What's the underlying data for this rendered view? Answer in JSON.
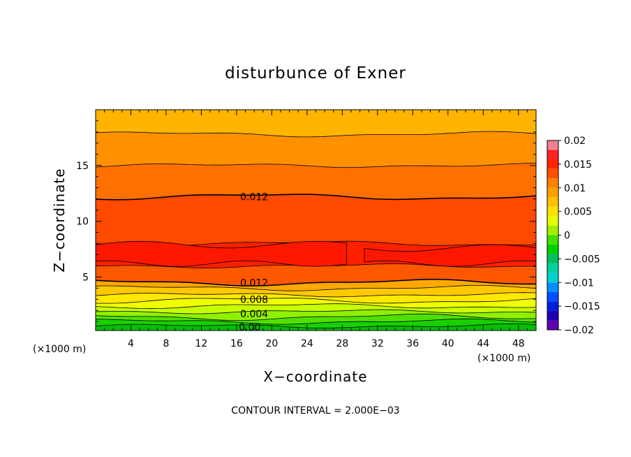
{
  "chart_data": {
    "type": "contour",
    "title": "disturbunce of Exner",
    "xlabel": "X−coordinate",
    "ylabel": "Z−coordinate",
    "x_unit": "(×1000 m)",
    "y_unit": "(×1000 m)",
    "xlim": [
      0,
      50
    ],
    "ylim": [
      0.2,
      20
    ],
    "x_ticks": [
      4,
      8,
      12,
      16,
      20,
      24,
      28,
      32,
      36,
      40,
      44,
      48
    ],
    "y_ticks": [
      5,
      10,
      15
    ],
    "contour_interval_text": "CONTOUR INTERVAL = 2.000E−03",
    "contour_labels": [
      {
        "text": "0.012",
        "x": 18,
        "z": 12.2
      },
      {
        "text": "0.012",
        "x": 18,
        "z": 4.5
      },
      {
        "text": "0.008",
        "x": 18,
        "z": 3.0
      },
      {
        "text": "0.004",
        "x": 18,
        "z": 1.7
      },
      {
        "text": "0.00",
        "x": 17.5,
        "z": 0.5
      }
    ],
    "colorbar": {
      "labels": [
        "0.02",
        "0.015",
        "0.01",
        "0.005",
        "0",
        "−0.005",
        "−0.01",
        "−0.015",
        "−0.02"
      ],
      "range": [
        -0.02,
        0.02
      ],
      "levels": 20,
      "colors": [
        "#f08090",
        "#ff2020",
        "#ff2400",
        "#ff5000",
        "#ff8000",
        "#ffa000",
        "#ffc000",
        "#ffe000",
        "#e6ff00",
        "#a0f000",
        "#40e000",
        "#00d000",
        "#00c060",
        "#00d0a0",
        "#00d0d0",
        "#0090ff",
        "#0050ff",
        "#0020e0",
        "#2000b0",
        "#6000b0"
      ]
    },
    "bands": [
      {
        "z_top": 0.6,
        "color": "#00c000"
      },
      {
        "z_top": 1.0,
        "color": "#18d000"
      },
      {
        "z_top": 1.4,
        "color": "#50e000"
      },
      {
        "z_top": 1.9,
        "color": "#90f000"
      },
      {
        "z_top": 2.4,
        "color": "#c8ff00"
      },
      {
        "z_top": 2.9,
        "color": "#f0ff00"
      },
      {
        "z_top": 3.4,
        "color": "#ffe800"
      },
      {
        "z_top": 4.0,
        "color": "#ffc800"
      },
      {
        "z_top": 4.5,
        "color": "#ffa800"
      },
      {
        "z_top": 6.0,
        "color": "#ff5800"
      },
      {
        "z_top": 8.0,
        "color": "#ff2000"
      },
      {
        "z_top": 12.2,
        "color": "#ff4a00"
      },
      {
        "z_top": 15.0,
        "color": "#ff7000"
      },
      {
        "z_top": 17.8,
        "color": "#ff9000"
      },
      {
        "z_top": 20.0,
        "color": "#ffb400"
      }
    ]
  }
}
